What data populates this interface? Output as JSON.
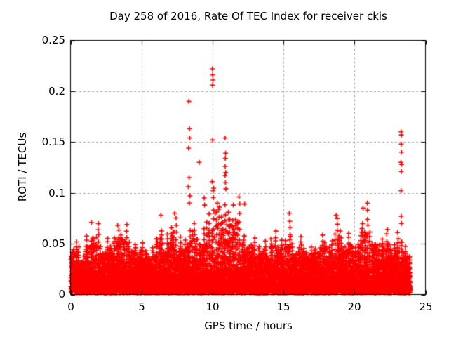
{
  "page": {
    "background": "#ffffff"
  },
  "chart_data": {
    "type": "scatter",
    "title": "Day 258 of 2016, Rate Of TEC Index for receiver ckis",
    "xlabel": "GPS time / hours",
    "ylabel": "ROTI / TECUs",
    "series_name": "ROTI",
    "xlim": [
      0,
      25
    ],
    "ylim": [
      0,
      0.25
    ],
    "xticks": [
      0,
      5,
      10,
      15,
      20,
      25
    ],
    "xtick_labels": [
      "0",
      "5",
      "10",
      "15",
      "20",
      "25"
    ],
    "yticks": [
      0,
      0.05,
      0.1,
      0.15,
      0.2,
      0.25
    ],
    "ytick_labels": [
      "0",
      "0.05",
      "0.1",
      "0.15",
      "0.2",
      "0.25"
    ],
    "grid": {
      "show": true,
      "color": "#a6a6a6",
      "dash": [
        3,
        3
      ]
    },
    "axis_color": "#000000",
    "marker": {
      "shape": "plus",
      "color": "#ff0000",
      "size": 7,
      "stroke": 1.6
    },
    "legend": "none",
    "time_coverage": {
      "start_hour": 0.0,
      "end_hour": 23.93
    },
    "envelope_bins_half_hour": [
      {
        "t": 0.0,
        "max": 0.052
      },
      {
        "t": 0.5,
        "max": 0.046
      },
      {
        "t": 1.0,
        "max": 0.058
      },
      {
        "t": 1.5,
        "max": 0.071
      },
      {
        "t": 2.0,
        "max": 0.048
      },
      {
        "t": 2.5,
        "max": 0.056
      },
      {
        "t": 3.0,
        "max": 0.062
      },
      {
        "t": 3.5,
        "max": 0.068
      },
      {
        "t": 4.0,
        "max": 0.052
      },
      {
        "t": 4.5,
        "max": 0.049
      },
      {
        "t": 5.0,
        "max": 0.05
      },
      {
        "t": 5.5,
        "max": 0.046
      },
      {
        "t": 6.0,
        "max": 0.064
      },
      {
        "t": 6.5,
        "max": 0.06
      },
      {
        "t": 7.0,
        "max": 0.075
      },
      {
        "t": 7.5,
        "max": 0.056
      },
      {
        "t": 8.0,
        "max": 0.062
      },
      {
        "t": 8.5,
        "max": 0.07
      },
      {
        "t": 9.0,
        "max": 0.066
      },
      {
        "t": 9.5,
        "max": 0.078
      },
      {
        "t": 10.0,
        "max": 0.105
      },
      {
        "t": 10.5,
        "max": 0.088
      },
      {
        "t": 11.0,
        "max": 0.082
      },
      {
        "t": 11.5,
        "max": 0.088
      },
      {
        "t": 12.0,
        "max": 0.058
      },
      {
        "t": 12.5,
        "max": 0.055
      },
      {
        "t": 13.0,
        "max": 0.048
      },
      {
        "t": 13.5,
        "max": 0.052
      },
      {
        "t": 14.0,
        "max": 0.062
      },
      {
        "t": 14.5,
        "max": 0.052
      },
      {
        "t": 15.0,
        "max": 0.065
      },
      {
        "t": 15.5,
        "max": 0.05
      },
      {
        "t": 16.0,
        "max": 0.056
      },
      {
        "t": 16.5,
        "max": 0.047
      },
      {
        "t": 17.0,
        "max": 0.046
      },
      {
        "t": 17.5,
        "max": 0.058
      },
      {
        "t": 18.0,
        "max": 0.052
      },
      {
        "t": 18.5,
        "max": 0.075
      },
      {
        "t": 19.0,
        "max": 0.055
      },
      {
        "t": 19.5,
        "max": 0.06
      },
      {
        "t": 20.0,
        "max": 0.058
      },
      {
        "t": 20.5,
        "max": 0.082
      },
      {
        "t": 21.0,
        "max": 0.062
      },
      {
        "t": 21.5,
        "max": 0.055
      },
      {
        "t": 22.0,
        "max": 0.064
      },
      {
        "t": 22.5,
        "max": 0.05
      },
      {
        "t": 23.0,
        "max": 0.06
      },
      {
        "t": 23.5,
        "max": 0.046
      }
    ],
    "outliers": [
      [
        1.45,
        0.071
      ],
      [
        3.3,
        0.068
      ],
      [
        6.35,
        0.078
      ],
      [
        7.32,
        0.08
      ],
      [
        8.32,
        0.19
      ],
      [
        8.36,
        0.163
      ],
      [
        8.38,
        0.154
      ],
      [
        8.3,
        0.144
      ],
      [
        8.34,
        0.115
      ],
      [
        8.28,
        0.106
      ],
      [
        8.4,
        0.097
      ],
      [
        8.35,
        0.09
      ],
      [
        9.05,
        0.13
      ],
      [
        9.4,
        0.095
      ],
      [
        9.43,
        0.088
      ],
      [
        9.98,
        0.222
      ],
      [
        10.0,
        0.216
      ],
      [
        10.02,
        0.211
      ],
      [
        9.99,
        0.206
      ],
      [
        10.0,
        0.152
      ],
      [
        9.96,
        0.111
      ],
      [
        10.03,
        0.102
      ],
      [
        10.32,
        0.09
      ],
      [
        10.88,
        0.154
      ],
      [
        10.91,
        0.139
      ],
      [
        10.89,
        0.134
      ],
      [
        10.88,
        0.126
      ],
      [
        10.92,
        0.12
      ],
      [
        10.87,
        0.117
      ],
      [
        10.9,
        0.11
      ],
      [
        10.93,
        0.104
      ],
      [
        11.45,
        0.088
      ],
      [
        11.85,
        0.096
      ],
      [
        12.25,
        0.089
      ],
      [
        15.4,
        0.08
      ],
      [
        15.44,
        0.072
      ],
      [
        18.7,
        0.078
      ],
      [
        20.6,
        0.085
      ],
      [
        20.9,
        0.09
      ],
      [
        23.28,
        0.16
      ],
      [
        23.3,
        0.157
      ],
      [
        23.29,
        0.148
      ],
      [
        23.31,
        0.14
      ],
      [
        23.27,
        0.13
      ],
      [
        23.32,
        0.128
      ],
      [
        23.3,
        0.121
      ],
      [
        23.28,
        0.102
      ],
      [
        23.29,
        0.077
      ],
      [
        23.31,
        0.07
      ]
    ],
    "density_model": {
      "seed": 20160914,
      "bin_hours": 0.5,
      "base_points_per_bin": 150,
      "base_exp_scale": 0.0105,
      "base_floor": 0.0015,
      "mid_points_per_bin": 24,
      "columns_per_bin": 3,
      "points_per_column": 9,
      "column_base": 0.022
    }
  }
}
